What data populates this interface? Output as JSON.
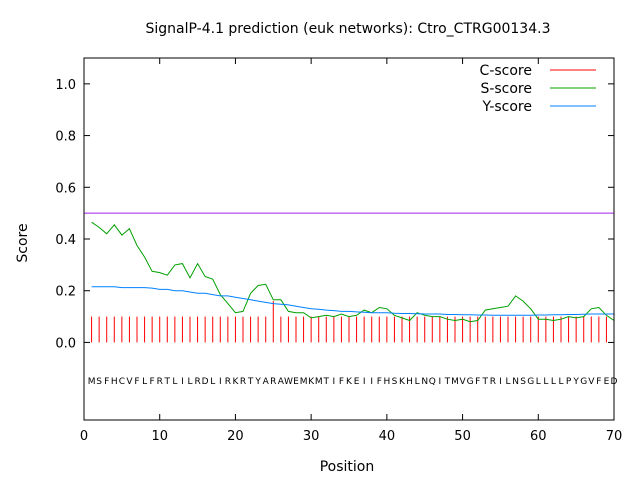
{
  "chart_data": {
    "type": "line",
    "title": "SignalP-4.1 prediction (euk networks): Ctro_CTRG00134.3",
    "xlabel": "Position",
    "ylabel": "Score",
    "xlim": [
      0,
      70
    ],
    "ylim": [
      -0.3,
      1.1
    ],
    "x_ticks": [
      0,
      10,
      20,
      30,
      40,
      50,
      60,
      70
    ],
    "y_ticks": [
      0.0,
      0.2,
      0.4,
      0.6,
      0.8,
      1.0
    ],
    "x_tick_labels": [
      "0",
      "10",
      "20",
      "30",
      "40",
      "50",
      "60",
      "70"
    ],
    "y_tick_labels": [
      "0.0",
      "0.2",
      "0.4",
      "0.6",
      "0.8",
      "1.0"
    ],
    "grid": false,
    "legend": "top-right",
    "sequence": "MSFHCVFLFRTLILRDLIRKRTYARAWEMKMTIFKEIIFHSKHLNQITMVGFTRILNSGLLLLPYGVFED",
    "threshold": {
      "y": 0.5,
      "color": "#a020f0"
    },
    "series": [
      {
        "name": "C-score",
        "kind": "impulse",
        "color": "#ff0000",
        "values": [
          0.1,
          0.1,
          0.1,
          0.1,
          0.1,
          0.1,
          0.1,
          0.1,
          0.1,
          0.1,
          0.1,
          0.1,
          0.1,
          0.1,
          0.1,
          0.1,
          0.1,
          0.1,
          0.1,
          0.1,
          0.1,
          0.1,
          0.1,
          0.1,
          0.16,
          0.1,
          0.1,
          0.1,
          0.1,
          0.1,
          0.1,
          0.1,
          0.1,
          0.1,
          0.1,
          0.1,
          0.1,
          0.1,
          0.1,
          0.1,
          0.1,
          0.1,
          0.1,
          0.1,
          0.1,
          0.1,
          0.1,
          0.1,
          0.1,
          0.1,
          0.1,
          0.1,
          0.1,
          0.1,
          0.1,
          0.1,
          0.1,
          0.1,
          0.1,
          0.1,
          0.1,
          0.1,
          0.1,
          0.1,
          0.1,
          0.1,
          0.1,
          0.1,
          0.1,
          0.1
        ]
      },
      {
        "name": "S-score",
        "kind": "line",
        "color": "#00a000",
        "values": [
          0.465,
          0.445,
          0.42,
          0.455,
          0.415,
          0.44,
          0.375,
          0.33,
          0.275,
          0.27,
          0.26,
          0.3,
          0.305,
          0.25,
          0.305,
          0.255,
          0.245,
          0.185,
          0.15,
          0.115,
          0.12,
          0.19,
          0.22,
          0.225,
          0.165,
          0.165,
          0.12,
          0.115,
          0.115,
          0.095,
          0.1,
          0.105,
          0.1,
          0.11,
          0.1,
          0.105,
          0.125,
          0.115,
          0.135,
          0.13,
          0.105,
          0.095,
          0.085,
          0.115,
          0.105,
          0.1,
          0.1,
          0.09,
          0.085,
          0.09,
          0.08,
          0.085,
          0.125,
          0.13,
          0.135,
          0.14,
          0.18,
          0.16,
          0.13,
          0.09,
          0.09,
          0.085,
          0.09,
          0.1,
          0.095,
          0.1,
          0.13,
          0.135,
          0.105,
          0.085
        ]
      },
      {
        "name": "Y-score",
        "kind": "line",
        "color": "#0080ff",
        "values": [
          0.215,
          0.215,
          0.215,
          0.215,
          0.212,
          0.212,
          0.212,
          0.212,
          0.21,
          0.205,
          0.205,
          0.2,
          0.2,
          0.195,
          0.19,
          0.19,
          0.185,
          0.18,
          0.18,
          0.175,
          0.17,
          0.165,
          0.16,
          0.155,
          0.15,
          0.148,
          0.145,
          0.14,
          0.135,
          0.13,
          0.128,
          0.125,
          0.123,
          0.12,
          0.12,
          0.118,
          0.117,
          0.115,
          0.115,
          0.115,
          0.113,
          0.112,
          0.112,
          0.111,
          0.11,
          0.11,
          0.11,
          0.108,
          0.108,
          0.107,
          0.107,
          0.106,
          0.106,
          0.105,
          0.105,
          0.105,
          0.105,
          0.105,
          0.105,
          0.106,
          0.106,
          0.107,
          0.107,
          0.108,
          0.108,
          0.109,
          0.11,
          0.11,
          0.11,
          0.11
        ]
      }
    ]
  }
}
